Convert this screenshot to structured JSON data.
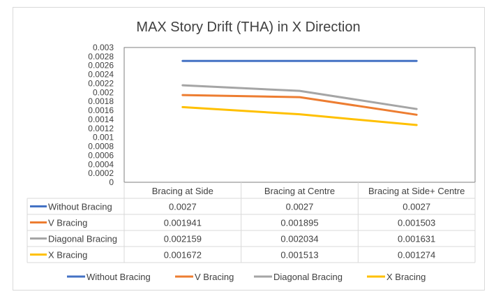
{
  "chart_data": {
    "type": "line",
    "title": "MAX Story Drift (THA) in X Direction",
    "xlabel": "",
    "ylabel": "",
    "categories": [
      "Bracing at Side",
      "Bracing at Centre",
      "Bracing at Side+ Centre"
    ],
    "ylim": [
      0,
      0.003
    ],
    "yticks": [
      "0",
      "0.0002",
      "0.0004",
      "0.0006",
      "0.0008",
      "0.001",
      "0.0012",
      "0.0014",
      "0.0016",
      "0.0018",
      "0.002",
      "0.0022",
      "0.0024",
      "0.0026",
      "0.0028",
      "0.003"
    ],
    "grid": false,
    "legend": "bottom",
    "data_table": true,
    "series": [
      {
        "name": "Without Bracing",
        "color": "#4472c4",
        "values": [
          0.0027,
          0.0027,
          0.0027
        ],
        "labels": [
          "0.0027",
          "0.0027",
          "0.0027"
        ]
      },
      {
        "name": "V Bracing",
        "color": "#ed7d31",
        "values": [
          0.001941,
          0.001895,
          0.001503
        ],
        "labels": [
          "0.001941",
          "0.001895",
          "0.001503"
        ]
      },
      {
        "name": "Diagonal Bracing",
        "color": "#a5a5a5",
        "values": [
          0.002159,
          0.002034,
          0.001631
        ],
        "labels": [
          "0.002159",
          "0.002034",
          "0.001631"
        ]
      },
      {
        "name": "X Bracing",
        "color": "#ffc000",
        "values": [
          0.001672,
          0.001513,
          0.001274
        ],
        "labels": [
          "0.001672",
          "0.001513",
          "0.001274"
        ]
      }
    ]
  }
}
